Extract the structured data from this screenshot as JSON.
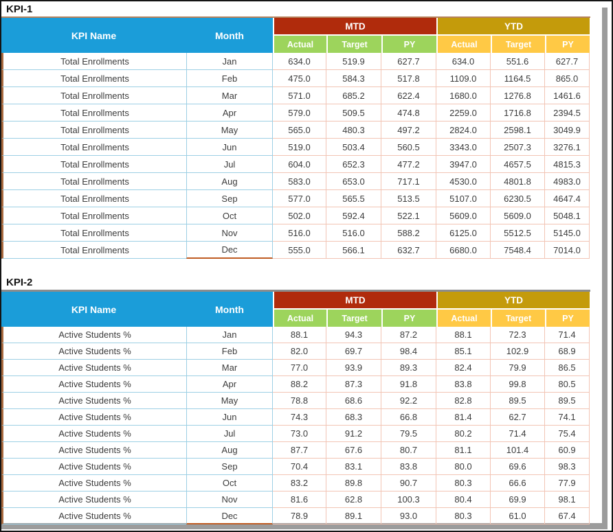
{
  "headers": {
    "kpi_name": "KPI Name",
    "month": "Month",
    "mtd": "MTD",
    "ytd": "YTD",
    "sub": [
      "Actual",
      "Target",
      "PY"
    ]
  },
  "colors": {
    "header_blue": "#1B9DD9",
    "mtd_red": "#B02B0C",
    "ytd_gold": "#C49B0B",
    "sub_green": "#9DD45C",
    "sub_yellow": "#FFC945",
    "row_border_blue": "#9CCFE4",
    "row_border_pink": "#F2C4B4",
    "table_left_brown": "#A96A3F",
    "dec_underline": "#BF5B22",
    "rule_kpi1": "#B5825C",
    "rule_kpi2": "#8C8C8C",
    "shadow_gray": "#9C9C9C"
  },
  "tables": [
    {
      "title": "KPI-1",
      "rows": [
        {
          "kpi": "Total Enrollments",
          "month": "Jan",
          "values": [
            "634.0",
            "519.9",
            "627.7",
            "634.0",
            "551.6",
            "627.7"
          ]
        },
        {
          "kpi": "Total Enrollments",
          "month": "Feb",
          "values": [
            "475.0",
            "584.3",
            "517.8",
            "1109.0",
            "1164.5",
            "865.0"
          ]
        },
        {
          "kpi": "Total Enrollments",
          "month": "Mar",
          "values": [
            "571.0",
            "685.2",
            "622.4",
            "1680.0",
            "1276.8",
            "1461.6"
          ]
        },
        {
          "kpi": "Total Enrollments",
          "month": "Apr",
          "values": [
            "579.0",
            "509.5",
            "474.8",
            "2259.0",
            "1716.8",
            "2394.5"
          ]
        },
        {
          "kpi": "Total Enrollments",
          "month": "May",
          "values": [
            "565.0",
            "480.3",
            "497.2",
            "2824.0",
            "2598.1",
            "3049.9"
          ]
        },
        {
          "kpi": "Total Enrollments",
          "month": "Jun",
          "values": [
            "519.0",
            "503.4",
            "560.5",
            "3343.0",
            "2507.3",
            "3276.1"
          ]
        },
        {
          "kpi": "Total Enrollments",
          "month": "Jul",
          "values": [
            "604.0",
            "652.3",
            "477.2",
            "3947.0",
            "4657.5",
            "4815.3"
          ]
        },
        {
          "kpi": "Total Enrollments",
          "month": "Aug",
          "values": [
            "583.0",
            "653.0",
            "717.1",
            "4530.0",
            "4801.8",
            "4983.0"
          ]
        },
        {
          "kpi": "Total Enrollments",
          "month": "Sep",
          "values": [
            "577.0",
            "565.5",
            "513.5",
            "5107.0",
            "6230.5",
            "4647.4"
          ]
        },
        {
          "kpi": "Total Enrollments",
          "month": "Oct",
          "values": [
            "502.0",
            "592.4",
            "522.1",
            "5609.0",
            "5609.0",
            "5048.1"
          ]
        },
        {
          "kpi": "Total Enrollments",
          "month": "Nov",
          "values": [
            "516.0",
            "516.0",
            "588.2",
            "6125.0",
            "5512.5",
            "5145.0"
          ]
        },
        {
          "kpi": "Total Enrollments",
          "month": "Dec",
          "values": [
            "555.0",
            "566.1",
            "632.7",
            "6680.0",
            "7548.4",
            "7014.0"
          ]
        }
      ]
    },
    {
      "title": "KPI-2",
      "rows": [
        {
          "kpi": "Active Students %",
          "month": "Jan",
          "values": [
            "88.1",
            "94.3",
            "87.2",
            "88.1",
            "72.3",
            "71.4"
          ]
        },
        {
          "kpi": "Active Students %",
          "month": "Feb",
          "values": [
            "82.0",
            "69.7",
            "98.4",
            "85.1",
            "102.9",
            "68.9"
          ]
        },
        {
          "kpi": "Active Students %",
          "month": "Mar",
          "values": [
            "77.0",
            "93.9",
            "89.3",
            "82.4",
            "79.9",
            "86.5"
          ]
        },
        {
          "kpi": "Active Students %",
          "month": "Apr",
          "values": [
            "88.2",
            "87.3",
            "91.8",
            "83.8",
            "99.8",
            "80.5"
          ]
        },
        {
          "kpi": "Active Students %",
          "month": "May",
          "values": [
            "78.8",
            "68.6",
            "92.2",
            "82.8",
            "89.5",
            "89.5"
          ]
        },
        {
          "kpi": "Active Students %",
          "month": "Jun",
          "values": [
            "74.3",
            "68.3",
            "66.8",
            "81.4",
            "62.7",
            "74.1"
          ]
        },
        {
          "kpi": "Active Students %",
          "month": "Jul",
          "values": [
            "73.0",
            "91.2",
            "79.5",
            "80.2",
            "71.4",
            "75.4"
          ]
        },
        {
          "kpi": "Active Students %",
          "month": "Aug",
          "values": [
            "87.7",
            "67.6",
            "80.7",
            "81.1",
            "101.4",
            "60.9"
          ]
        },
        {
          "kpi": "Active Students %",
          "month": "Sep",
          "values": [
            "70.4",
            "83.1",
            "83.8",
            "80.0",
            "69.6",
            "98.3"
          ]
        },
        {
          "kpi": "Active Students %",
          "month": "Oct",
          "values": [
            "83.2",
            "89.8",
            "90.7",
            "80.3",
            "66.6",
            "77.9"
          ]
        },
        {
          "kpi": "Active Students %",
          "month": "Nov",
          "values": [
            "81.6",
            "62.8",
            "100.3",
            "80.4",
            "69.9",
            "98.1"
          ]
        },
        {
          "kpi": "Active Students %",
          "month": "Dec",
          "values": [
            "78.9",
            "89.1",
            "93.0",
            "80.3",
            "61.0",
            "67.4"
          ]
        }
      ]
    }
  ]
}
